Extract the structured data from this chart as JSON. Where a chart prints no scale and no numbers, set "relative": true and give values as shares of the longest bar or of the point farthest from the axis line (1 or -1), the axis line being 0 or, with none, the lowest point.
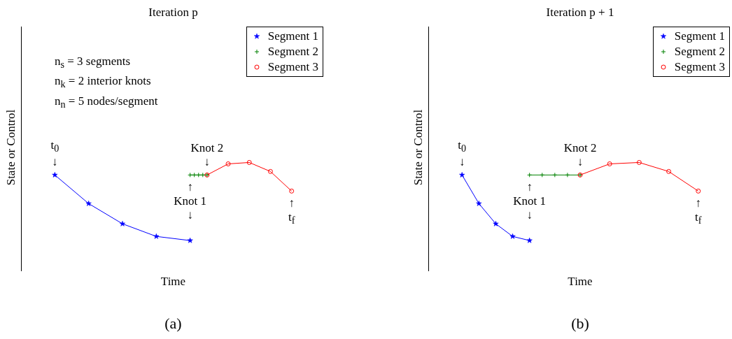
{
  "chart_data": [
    {
      "type": "line",
      "title": "Iteration p",
      "xlabel": "Time",
      "ylabel": "State or Control",
      "relative": true,
      "legend": "top right",
      "categories": [
        null,
        null,
        null,
        null,
        null,
        null,
        null,
        null,
        null,
        null,
        null,
        null,
        null,
        null,
        null,
        null,
        null,
        null,
        null,
        null,
        null,
        null,
        null,
        null,
        null,
        null,
        null,
        null,
        null,
        null,
        null,
        null,
        null,
        null,
        null,
        null,
        null,
        null,
        null,
        null,
        null,
        null,
        null,
        null,
        null,
        null,
        null,
        null,
        null,
        null,
        null,
        null,
        null,
        null,
        null,
        null,
        null,
        null,
        null,
        null,
        null,
        null,
        null,
        null,
        null,
        null,
        null,
        null,
        null,
        null,
        null,
        null,
        null
      ],
      "series": [
        {
          "name": "Segment 1",
          "color": "#0000ff",
          "marker": "star",
          "values": [
            null,
            null,
            null,
            null,
            null,
            null,
            null,
            null,
            0.885,
            null,
            null,
            null,
            null,
            null,
            null,
            null,
            0.622,
            null,
            null,
            null,
            null,
            null,
            null,
            null,
            0.436,
            null,
            null,
            null,
            null,
            null,
            null,
            null,
            0.32,
            null,
            null,
            null,
            null,
            null,
            null,
            null,
            0.282,
            null,
            null,
            null,
            null,
            null,
            null,
            null,
            null,
            null,
            null,
            null,
            null,
            null,
            null,
            null,
            null,
            null,
            null,
            null,
            null,
            null,
            null,
            null,
            null,
            null,
            null,
            null,
            null,
            null,
            null,
            null,
            null
          ]
        },
        {
          "name": "Segment 2",
          "color": "#008000",
          "marker": "cross",
          "values": [
            null,
            null,
            null,
            null,
            null,
            null,
            null,
            null,
            null,
            null,
            null,
            null,
            null,
            null,
            null,
            null,
            null,
            null,
            null,
            null,
            null,
            null,
            null,
            null,
            null,
            null,
            null,
            null,
            null,
            null,
            null,
            null,
            null,
            null,
            null,
            null,
            null,
            null,
            null,
            null,
            0.885,
            0.885,
            0.885,
            0.885,
            0.885,
            null,
            null,
            null,
            null,
            null,
            null,
            null,
            null,
            null,
            null,
            null,
            null,
            null,
            null,
            null,
            null,
            null,
            null,
            null,
            null,
            null,
            null,
            null,
            null,
            null,
            null,
            null,
            null
          ]
        },
        {
          "name": "Segment 3",
          "color": "#ff0000",
          "marker": "circle",
          "values": [
            null,
            null,
            null,
            null,
            null,
            null,
            null,
            null,
            null,
            null,
            null,
            null,
            null,
            null,
            null,
            null,
            null,
            null,
            null,
            null,
            null,
            null,
            null,
            null,
            null,
            null,
            null,
            null,
            null,
            null,
            null,
            null,
            null,
            null,
            null,
            null,
            null,
            null,
            null,
            null,
            null,
            null,
            null,
            null,
            0.885,
            null,
            null,
            null,
            null,
            0.987,
            null,
            null,
            null,
            null,
            1.0,
            null,
            null,
            null,
            null,
            0.917,
            null,
            null,
            null,
            null,
            0.737,
            null,
            null,
            null,
            null,
            null,
            null,
            null,
            null
          ]
        }
      ],
      "annotations": [
        "n$_{s}$ = 3 segments",
        "n$_{k}$ = 2 interior knots",
        "n$_{n}$ = 5 nodes/segment",
        "t$_{0}$\n↓",
        "↑\nKnot 1\n↓",
        "Knot 2\n↓",
        "↑\nt$_{f}$",
        "(a)"
      ]
    },
    {
      "type": "line",
      "title": "Iteration p + 1",
      "xlabel": "Time",
      "ylabel": "State or Control",
      "relative": true,
      "legend": "top right",
      "categories": [
        null,
        null,
        null,
        null,
        null,
        null,
        null,
        null,
        null,
        null,
        null,
        null,
        null,
        null,
        null,
        null,
        null,
        null,
        null,
        null,
        null,
        null,
        null,
        null,
        null,
        null,
        null,
        null,
        null,
        null,
        null,
        null,
        null,
        null,
        null,
        null,
        null,
        null,
        null,
        null,
        null,
        null,
        null,
        null,
        null,
        null,
        null,
        null,
        null,
        null,
        null,
        null,
        null,
        null,
        null,
        null,
        null,
        null,
        null,
        null,
        null,
        null,
        null,
        null,
        null,
        null,
        null,
        null,
        null,
        null,
        null,
        null,
        null
      ],
      "series": [
        {
          "name": "Segment 1",
          "color": "#0000ff",
          "marker": "star",
          "values": [
            null,
            null,
            null,
            null,
            null,
            null,
            null,
            null,
            0.885,
            null,
            null,
            null,
            0.622,
            null,
            null,
            null,
            0.436,
            null,
            null,
            null,
            0.32,
            null,
            null,
            null,
            0.282,
            null,
            null,
            null,
            null,
            null,
            null,
            null,
            null,
            null,
            null,
            null,
            null,
            null,
            null,
            null,
            null,
            null,
            null,
            null,
            null,
            null,
            null,
            null,
            null,
            null,
            null,
            null,
            null,
            null,
            null,
            null,
            null,
            null,
            null,
            null,
            null,
            null,
            null,
            null,
            null,
            null,
            null,
            null,
            null,
            null,
            null,
            null,
            null
          ]
        },
        {
          "name": "Segment 2",
          "color": "#008000",
          "marker": "cross",
          "values": [
            null,
            null,
            null,
            null,
            null,
            null,
            null,
            null,
            null,
            null,
            null,
            null,
            null,
            null,
            null,
            null,
            null,
            null,
            null,
            null,
            null,
            null,
            null,
            null,
            0.885,
            null,
            null,
            0.885,
            null,
            null,
            0.885,
            null,
            null,
            0.885,
            null,
            null,
            0.885,
            null,
            null,
            null,
            null,
            null,
            null,
            null,
            null,
            null,
            null,
            null,
            null,
            null,
            null,
            null,
            null,
            null,
            null,
            null,
            null,
            null,
            null,
            null,
            null,
            null,
            null,
            null,
            null,
            null,
            null,
            null,
            null,
            null,
            null,
            null,
            null
          ]
        },
        {
          "name": "Segment 3",
          "color": "#ff0000",
          "marker": "circle",
          "values": [
            null,
            null,
            null,
            null,
            null,
            null,
            null,
            null,
            null,
            null,
            null,
            null,
            null,
            null,
            null,
            null,
            null,
            null,
            null,
            null,
            null,
            null,
            null,
            null,
            null,
            null,
            null,
            null,
            null,
            null,
            null,
            null,
            null,
            null,
            null,
            null,
            0.885,
            null,
            null,
            null,
            null,
            null,
            null,
            0.987,
            null,
            null,
            null,
            null,
            null,
            null,
            1.0,
            null,
            null,
            null,
            null,
            null,
            null,
            0.917,
            null,
            null,
            null,
            null,
            null,
            null,
            0.737,
            null,
            null,
            null,
            null,
            null,
            null,
            null,
            null
          ]
        }
      ],
      "annotations": [
        "t$_{0}$\n↓",
        "↑\nKnot 1\n↓",
        "Knot 2\n↓",
        "↑\nt$_{f}$",
        "(b)"
      ]
    }
  ]
}
